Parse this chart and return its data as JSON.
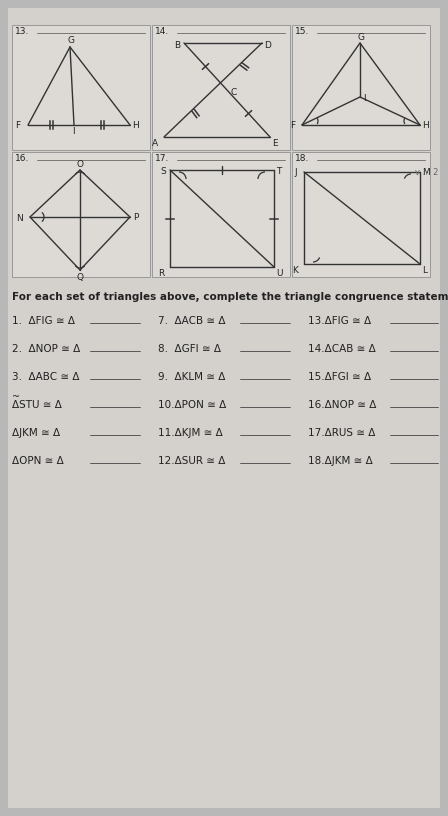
{
  "bg_color": "#b8b8b8",
  "paper_color": "#d4d0cc",
  "box_color": "#dedad6",
  "box_edge": "#aaaaaa",
  "line_color": "#333333",
  "text_color": "#222222",
  "title_instruction": "For each set of triangles above, complete the triangle congruence statement.",
  "col1_problems": [
    "1.  ΔFIG ≅ Δ",
    "2.  ΔNOP ≅ Δ",
    "3.  ΔABC ≅ Δ",
    "ΔSTU ≅ Δ",
    "ΔJKM ≅ Δ",
    "ΔOPN ≅ Δ"
  ],
  "col2_problems": [
    "7.  ΔACB ≅ Δ",
    "8.  ΔGFI ≅ Δ",
    "9.  ΔKLM ≅ Δ",
    "10.ΔPON ≅ Δ",
    "11.ΔKJM ≅ Δ",
    "12.ΔSUR ≅ Δ"
  ],
  "col3_problems": [
    "13.ΔFIG ≅ Δ",
    "14.ΔCAB ≅ Δ",
    "15.ΔFGI ≅ Δ",
    "16.ΔNOP ≅ Δ",
    "17.ΔRUS ≅ Δ",
    "18.ΔJKM ≅ Δ"
  ]
}
